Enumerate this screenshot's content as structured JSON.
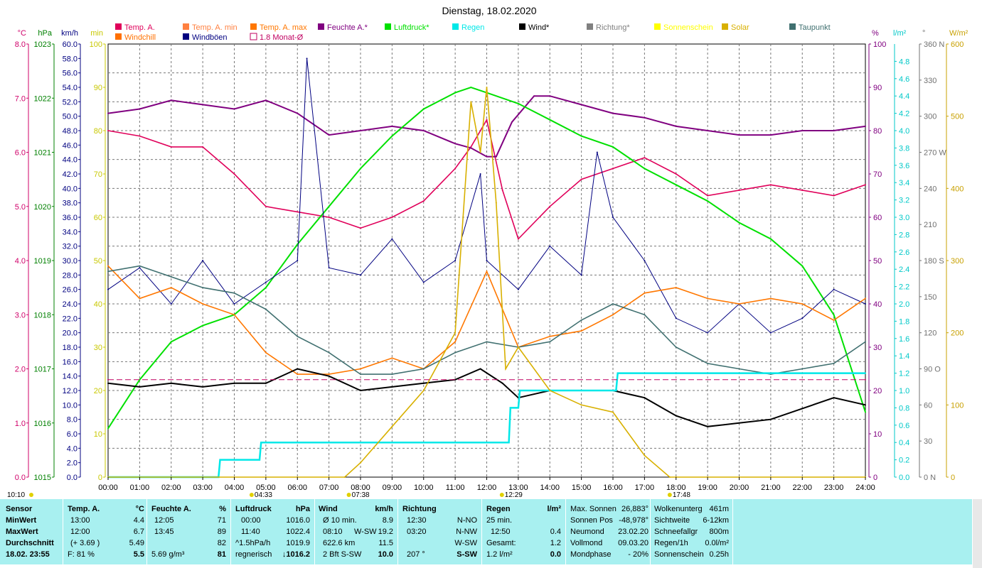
{
  "title": "Dienstag, 18.02.2020",
  "colors": {
    "temp": "#e0005a",
    "windchill": "#e07000",
    "temp_min": "#ff8040",
    "temp_max": "#ff7700",
    "windboen": "#000080",
    "monat": "#c00060",
    "feuchte": "#800080",
    "luftdruck": "#00e000",
    "regen": "#00e8e8",
    "wind": "#000000",
    "richtung": "#808080",
    "sonnenschein": "#ffff00",
    "solar": "#d8b000",
    "taupunkt": "#407070",
    "panel": "#a8f0f0"
  },
  "legend": [
    {
      "label": "Temp. A.",
      "color": "#e0005a",
      "style": "box"
    },
    {
      "label": "Windchill",
      "color": "#ff7000",
      "style": "box"
    },
    {
      "label": "Temp. A. min",
      "color": "#ff8040",
      "style": "box"
    },
    {
      "label": "Windböen",
      "color": "#000080",
      "style": "box"
    },
    {
      "label": "Temp. A. max",
      "color": "#ff7700",
      "style": "box"
    },
    {
      "label": "1.8 Monat-Ø",
      "color": "#c00060",
      "style": "outline"
    },
    {
      "label": "Feuchte A.*",
      "color": "#800080",
      "style": "box"
    },
    {
      "label": "Luftdruck*",
      "color": "#00e000",
      "style": "box"
    },
    {
      "label": "Regen",
      "color": "#00e8e8",
      "style": "box"
    },
    {
      "label": "Wind*",
      "color": "#000000",
      "style": "box"
    },
    {
      "label": "Richtung*",
      "color": "#808080",
      "style": "box"
    },
    {
      "label": "Sonnenschein",
      "color": "#ffff00",
      "style": "box"
    },
    {
      "label": "Solar",
      "color": "#d8b000",
      "style": "box"
    },
    {
      "label": "Taupunkt",
      "color": "#407070",
      "style": "box"
    }
  ],
  "axis_units": {
    "temp": "°C",
    "hpa": "hPa",
    "kmh": "km/h",
    "min": "min",
    "pct": "%",
    "lm2": "l/m²",
    "deg": "°",
    "wm2": "W/m²"
  },
  "axes": {
    "temp": {
      "labels": [
        "8.0",
        "7.0",
        "6.0",
        "5.0",
        "4.0",
        "3.0",
        "2.0",
        "1.0",
        "0.0"
      ]
    },
    "hpa": {
      "labels": [
        "1023",
        "1022",
        "1021",
        "1020",
        "1019",
        "1018",
        "1017",
        "1016",
        "1015"
      ]
    },
    "kmh": {
      "labels": [
        "60.0",
        "58.0",
        "56.0",
        "54.0",
        "52.0",
        "50.0",
        "48.0",
        "46.0",
        "44.0",
        "42.0",
        "40.0",
        "38.0",
        "36.0",
        "34.0",
        "32.0",
        "30.0",
        "28.0",
        "26.0",
        "24.0",
        "22.0",
        "20.0",
        "18.0",
        "16.0",
        "14.0",
        "12.0",
        "10.0",
        "8.0",
        "6.0",
        "4.0",
        "2.0",
        "0.0"
      ]
    },
    "min": {
      "labels": [
        "100",
        "90",
        "80",
        "70",
        "60",
        "50",
        "40",
        "30",
        "20",
        "10",
        "0"
      ]
    },
    "pct": {
      "labels": [
        "100",
        "90",
        "80",
        "70",
        "60",
        "50",
        "40",
        "30",
        "20",
        "10",
        "0"
      ]
    },
    "lm2": {
      "labels": [
        "4.8",
        "4.6",
        "4.4",
        "4.2",
        "4.0",
        "3.8",
        "3.6",
        "3.4",
        "3.2",
        "3.0",
        "2.8",
        "2.6",
        "2.4",
        "2.2",
        "2.0",
        "1.8",
        "1.6",
        "1.4",
        "1.2",
        "1.0",
        "0.8",
        "0.6",
        "0.4",
        "0.2",
        "0.0"
      ]
    },
    "deg": {
      "labels": [
        "360 N",
        "330",
        "300",
        "270 W",
        "240",
        "210",
        "180 S",
        "150",
        "120",
        "90 O",
        "60",
        "30",
        "0 N"
      ]
    },
    "wm2": {
      "labels": [
        "600",
        "500",
        "400",
        "300",
        "200",
        "100",
        "0"
      ]
    }
  },
  "time_labels": [
    "00:00",
    "01:00",
    "02:00",
    "03:00",
    "04:00",
    "05:00",
    "06:00",
    "07:00",
    "08:00",
    "09:00",
    "10:00",
    "11:00",
    "12:00",
    "13:00",
    "14:00",
    "15:00",
    "16:00",
    "17:00",
    "18:00",
    "19:00",
    "20:00",
    "21:00",
    "22:00",
    "23:00",
    "24:00"
  ],
  "events": [
    {
      "text": "10:10",
      "hour": 0.0
    },
    {
      "text": "04:33",
      "hour": 4.55
    },
    {
      "text": "07:38",
      "hour": 7.63
    },
    {
      "text": "12:29",
      "hour": 12.48
    },
    {
      "text": "17:48",
      "hour": 17.8
    }
  ],
  "chart_data": {
    "type": "line",
    "title": "Dienstag, 18.02.2020",
    "x_range": [
      0,
      24
    ],
    "series": [
      {
        "name": "Temp. A.",
        "unit": "°C",
        "ylim": [
          0,
          8
        ],
        "x": [
          0,
          1,
          2,
          3,
          4,
          5,
          6,
          7,
          8,
          9,
          10,
          11,
          11.5,
          12,
          12.5,
          13,
          14,
          15,
          16,
          17,
          18,
          19,
          20,
          21,
          22,
          23,
          24
        ],
        "values": [
          6.4,
          6.3,
          6.1,
          6.1,
          5.6,
          5.0,
          4.9,
          4.8,
          4.6,
          4.8,
          5.1,
          5.7,
          6.1,
          6.6,
          5.3,
          4.4,
          5.0,
          5.5,
          5.7,
          5.9,
          5.6,
          5.2,
          5.3,
          5.4,
          5.3,
          5.2,
          5.4
        ]
      },
      {
        "name": "Feuchte A.*",
        "unit": "%",
        "ylim": [
          0,
          100
        ],
        "x": [
          0,
          1,
          2,
          3,
          4,
          5,
          6,
          7,
          8,
          9,
          10,
          11,
          11.5,
          12,
          12.3,
          12.8,
          13.5,
          14,
          15,
          16,
          17,
          18,
          19,
          20,
          21,
          22,
          23,
          24
        ],
        "values": [
          84,
          85,
          87,
          86,
          85,
          87,
          84,
          79,
          80,
          81,
          80,
          77,
          76,
          74,
          74,
          82,
          88,
          88,
          86,
          84,
          83,
          81,
          80,
          79,
          79,
          80,
          80,
          81
        ]
      },
      {
        "name": "Luftdruck*",
        "unit": "hPa",
        "ylim": [
          1015,
          1023
        ],
        "x": [
          0,
          1,
          2,
          3,
          4,
          5,
          6,
          7,
          8,
          9,
          10,
          11,
          11.5,
          12,
          13,
          14,
          15,
          16,
          17,
          18,
          19,
          20,
          21,
          22,
          23,
          24
        ],
        "values": [
          1015.9,
          1016.8,
          1017.5,
          1017.8,
          1018.0,
          1018.5,
          1019.3,
          1020.0,
          1020.7,
          1021.3,
          1021.8,
          1022.1,
          1022.2,
          1022.1,
          1021.9,
          1021.6,
          1021.3,
          1021.1,
          1020.7,
          1020.4,
          1020.1,
          1019.7,
          1019.4,
          1018.9,
          1018.0,
          1016.2
        ]
      },
      {
        "name": "Windböen",
        "unit": "km/h",
        "ylim": [
          0,
          60
        ],
        "x": [
          0,
          1,
          2,
          3,
          4,
          5,
          6,
          6.3,
          7,
          8,
          9,
          10,
          11,
          11.8,
          12,
          13,
          14,
          15,
          15.5,
          16,
          17,
          18,
          19,
          20,
          21,
          22,
          23,
          24
        ],
        "values": [
          26,
          29,
          24,
          30,
          24,
          27,
          30,
          58,
          29,
          28,
          33,
          27,
          30,
          42,
          30,
          26,
          32,
          28,
          45,
          36,
          30,
          22,
          20,
          24,
          20,
          22,
          26,
          24
        ]
      },
      {
        "name": "Windchill",
        "unit": "°C",
        "ylim": [
          0,
          8
        ],
        "x": [
          0,
          1,
          2,
          3,
          4,
          5,
          6,
          7,
          8,
          9,
          10,
          11,
          12,
          13,
          14,
          15,
          16,
          17,
          18,
          19,
          20,
          21,
          22,
          23,
          24
        ],
        "values": [
          3.9,
          3.3,
          3.5,
          3.2,
          3.0,
          2.3,
          1.9,
          1.9,
          2.0,
          2.2,
          2.0,
          2.5,
          3.8,
          2.4,
          2.6,
          2.7,
          3.0,
          3.4,
          3.5,
          3.3,
          3.2,
          3.3,
          3.2,
          2.9,
          3.3
        ]
      },
      {
        "name": "Taupunkt",
        "unit": "°C",
        "ylim": [
          0,
          8
        ],
        "x": [
          0,
          1,
          2,
          3,
          4,
          5,
          6,
          7,
          8,
          9,
          10,
          11,
          12,
          13,
          14,
          15,
          16,
          17,
          18,
          19,
          20,
          21,
          22,
          23,
          24
        ],
        "values": [
          3.8,
          3.9,
          3.7,
          3.5,
          3.4,
          3.1,
          2.6,
          2.3,
          1.9,
          1.9,
          2.0,
          2.3,
          2.5,
          2.4,
          2.5,
          2.9,
          3.2,
          3.0,
          2.4,
          2.1,
          2.0,
          1.9,
          2.0,
          2.1,
          2.5
        ]
      },
      {
        "name": "Wind*",
        "unit": "km/h",
        "ylim": [
          0,
          60
        ],
        "x": [
          0,
          1,
          2,
          3,
          4,
          5,
          6,
          7,
          8,
          9,
          10,
          11,
          11.8,
          12.5,
          13,
          14,
          15,
          16,
          17,
          18,
          19,
          20,
          21,
          22,
          23,
          24
        ],
        "values": [
          13,
          12.5,
          13,
          12.5,
          13,
          13,
          15,
          14,
          12,
          12.5,
          13,
          13.5,
          15,
          13,
          11,
          12,
          12,
          12,
          11,
          8.5,
          7,
          7.5,
          8,
          9.5,
          11,
          10
        ]
      },
      {
        "name": "Regen",
        "unit": "l/m²",
        "ylim": [
          0,
          5
        ],
        "x": [
          0,
          3.5,
          3.55,
          4.8,
          4.85,
          12.7,
          12.75,
          13.0,
          13.05,
          16.1,
          16.15,
          24
        ],
        "values": [
          0,
          0,
          0.2,
          0.2,
          0.4,
          0.4,
          0.8,
          0.8,
          1.0,
          1.0,
          1.2,
          1.2
        ]
      },
      {
        "name": "Solar",
        "unit": "W/m²",
        "ylim": [
          0,
          600
        ],
        "x": [
          0,
          7.5,
          8,
          9,
          10,
          11,
          11.5,
          11.8,
          12,
          12.3,
          12.6,
          13,
          14,
          15,
          16,
          17,
          17.8,
          18,
          24
        ],
        "values": [
          0,
          0,
          20,
          70,
          120,
          200,
          520,
          450,
          540,
          380,
          150,
          180,
          120,
          100,
          90,
          30,
          0,
          0,
          0
        ]
      },
      {
        "name": "1.8 Monat-Ø",
        "unit": "°C",
        "ylim": [
          0,
          8
        ],
        "x": [
          0,
          24
        ],
        "values": [
          1.8,
          1.8
        ]
      }
    ]
  },
  "panel": {
    "headers": {
      "sensor": "Sensor",
      "temp": "Temp. A.",
      "temp_unit": "°C",
      "feuchte": "Feuchte A.",
      "feuchte_unit": "%",
      "luftdruck": "Luftdruck",
      "luftdruck_unit": "hPa",
      "wind": "Wind",
      "wind_unit": "km/h",
      "richtung": "Richtung",
      "regen": "Regen",
      "regen_unit": "l/m²"
    },
    "labels": {
      "min": "MinWert",
      "max": "MaxWert",
      "avg": "Durchschnitt",
      "ts": "18.02. 23:55"
    },
    "temp": {
      "min_time": "13:00",
      "min_val": "4.4",
      "max_time": "12:00",
      "max_val": "6.7",
      "avg_note": "(+ 3.69 )",
      "avg_val": "5.49",
      "cur_note": "F: 81 %",
      "cur_val": "5.5"
    },
    "feuchte": {
      "min_time": "12:05",
      "min_val": "71",
      "max_time": "13:45",
      "max_val": "89",
      "avg_val": "82",
      "cur_note": "5.69 g/m³",
      "cur_val": "81"
    },
    "luftdruck": {
      "min_time": "00:00",
      "min_val": "1016.0",
      "max_time": "11:40",
      "max_val": "1022.4",
      "avg_note": "^1.5hPa/h",
      "avg_val": "1019.9",
      "cur_note": "regnerisch",
      "cur_val": "↓1016.2"
    },
    "wind": {
      "r1_label": "Ø 10 min.",
      "r1_val": "8.9",
      "r2_time": "08:10",
      "r2_dir": "W-SW",
      "r2_val": "19.2",
      "r3_label": "622.6 km",
      "r3_val": "11.5",
      "r4_label": "2 Bft S-SW",
      "r4_val": "10.0"
    },
    "richtung": {
      "r1_time": "12:30",
      "r1_val": "N-NO",
      "r2_time": "03:20",
      "r2_val": "N-NW",
      "r3_val": "W-SW",
      "r4_label": "207 °",
      "r4_val": "S-SW"
    },
    "regen": {
      "r1_label": "25 min.",
      "r2_time": "12:50",
      "r2_val": "0.4",
      "r3_label": "Gesamt:",
      "r3_val": "1.2",
      "r4_label": "1.2 l/m²",
      "r4_val": "0.0"
    },
    "astro": {
      "r1_label": "Max. Sonnen",
      "r1_val": "26,883°",
      "r2_label": "Sonnen Pos",
      "r2_val": "-48,978°",
      "r3_label": "Neumond",
      "r3_val": "23.02.20",
      "r4_label": "Vollmond",
      "r4_val": "09.03.20",
      "r5_label": "Mondphase",
      "r5_val": "- 20%"
    },
    "wolken": {
      "r1_label": "Wolkenunterg",
      "r1_val": "461m",
      "r2_label": "Sichtweite",
      "r2_val": "6-12km",
      "r3_label": "Schneefallgr",
      "r3_val": "800m",
      "r4_label": "Regen/1h",
      "r4_val": "0.0l/m²",
      "r5_label": "Sonnenschein",
      "r5_val": "0.25h"
    }
  }
}
